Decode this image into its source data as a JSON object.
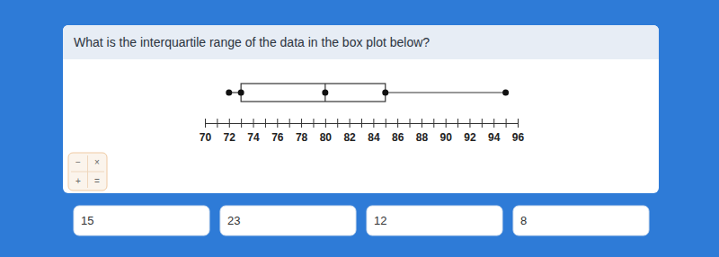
{
  "question": "What is the interquartile range of the data in the box plot below?",
  "calculator_keys": [
    "−",
    "×",
    "+",
    "="
  ],
  "choices": [
    15,
    23,
    12,
    8
  ],
  "chart_data": {
    "type": "box",
    "min": 72,
    "q1": 73,
    "median": 80,
    "q3": 85,
    "max": 95,
    "xlim": [
      70,
      96
    ],
    "xticks": [
      70,
      {
        "value": 71,
        "label": null
      },
      72,
      {
        "value": 73,
        "label": null
      },
      74,
      {
        "value": 75,
        "label": null
      },
      76,
      {
        "value": 77,
        "label": null
      },
      78,
      {
        "value": 79,
        "label": null
      },
      80,
      {
        "value": 81,
        "label": null
      },
      82,
      {
        "value": 83,
        "label": null
      },
      84,
      {
        "value": 85,
        "label": null
      },
      86,
      {
        "value": 87,
        "label": null
      },
      88,
      {
        "value": 89,
        "label": null
      },
      90,
      {
        "value": 91,
        "label": null
      },
      92,
      {
        "value": 93,
        "label": null
      },
      94,
      {
        "value": 95,
        "label": null
      },
      96
    ]
  }
}
